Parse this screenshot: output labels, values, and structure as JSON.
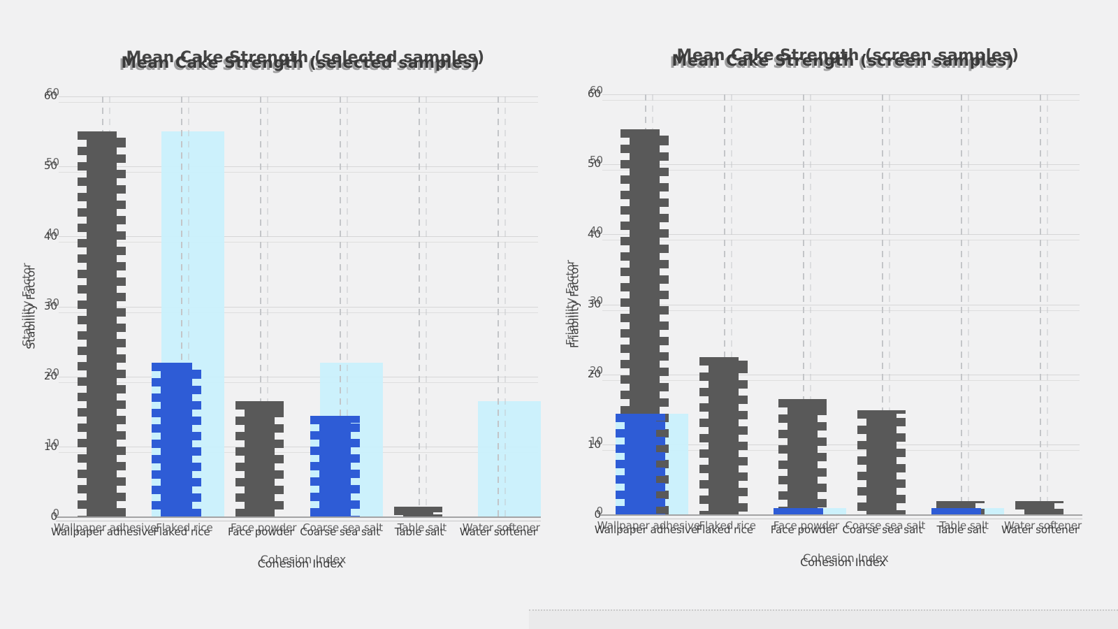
{
  "figure": {
    "background_color": "#f1f1f2",
    "bar_colors": {
      "dark_gray": "#595959",
      "royal_blue": "#2e5cd6",
      "light_cyan": "#c9f1fd"
    },
    "effects": "glitch-scanline distortion: striped bars, ghost-doubled text",
    "window_edge_strip": "pale strip with dotted top border, bottom right"
  },
  "chart_data": [
    {
      "type": "bar",
      "title": "Mean Cake Strength (selected samples)",
      "xlabel": "Cohesion Index",
      "ylabel": "Stability Factor",
      "ylim": [
        0,
        60
      ],
      "yticks": [
        0,
        10,
        20,
        30,
        40,
        50,
        60
      ],
      "grid": {
        "horizontal": "solid light",
        "vertical": "dashed per category"
      },
      "legend": "none",
      "categories": [
        "Wallpaper adhesive",
        "Flaked rice",
        "Face powder",
        "Coarse sea salt",
        "Table salt",
        "Water softener"
      ],
      "series": [
        {
          "name": "dark-gray-bars",
          "color": "#595959",
          "style": "glitch-striped",
          "values": [
            55,
            null,
            16.5,
            null,
            1.5,
            null
          ]
        },
        {
          "name": "light-cyan-bars",
          "color": "#c9f1fd",
          "style": "solid",
          "values": [
            null,
            55,
            null,
            22,
            null,
            16.5
          ]
        },
        {
          "name": "royal-blue-bars",
          "color": "#2e5cd6",
          "style": "glitch-striped",
          "values": [
            null,
            22,
            null,
            14.5,
            null,
            null
          ]
        }
      ]
    },
    {
      "type": "bar",
      "title": "Mean Cake Strength (screen samples)",
      "xlabel": "Cohesion Index",
      "ylabel": "Friability Factor",
      "ylim": [
        0,
        60
      ],
      "yticks": [
        0,
        10,
        20,
        30,
        40,
        50,
        60
      ],
      "grid": {
        "horizontal": "solid light",
        "vertical": "dashed per category"
      },
      "legend": "none",
      "categories": [
        "Wallpaper adhesive",
        "Flaked rice",
        "Face powder",
        "Coarse sea salt",
        "Table salt",
        "Water softener"
      ],
      "series": [
        {
          "name": "dark-gray-bars",
          "color": "#595959",
          "style": "glitch-striped",
          "values": [
            55,
            22.5,
            16.5,
            15,
            2,
            2
          ]
        },
        {
          "name": "light-cyan-bars",
          "color": "#c9f1fd",
          "style": "solid",
          "values": [
            14.5,
            null,
            1,
            null,
            1,
            null
          ]
        },
        {
          "name": "royal-blue-bars",
          "color": "#2e5cd6",
          "style": "glitch-striped",
          "values": [
            14.5,
            null,
            1,
            null,
            1,
            null
          ]
        }
      ]
    }
  ]
}
